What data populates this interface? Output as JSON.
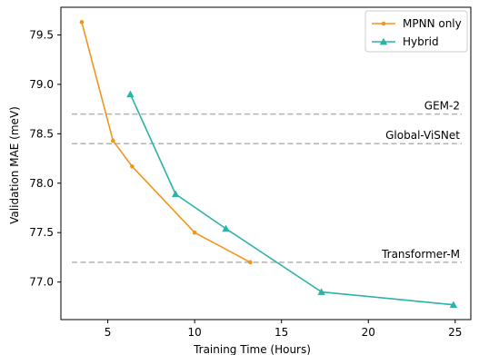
{
  "chart_data": {
    "type": "line",
    "xlabel": "Training Time (Hours)",
    "ylabel": "Validation MAE (meV)",
    "xlim": [
      2.3,
      25.9
    ],
    "ylim": [
      76.62,
      79.78
    ],
    "xticks": [
      5,
      10,
      15,
      20,
      25
    ],
    "xtick_labels": [
      "5",
      "10",
      "15",
      "20",
      "25"
    ],
    "yticks": [
      77.0,
      77.5,
      78.0,
      78.5,
      79.0,
      79.5
    ],
    "ytick_labels": [
      "77.0",
      "77.5",
      "78.0",
      "78.5",
      "79.0",
      "79.5"
    ],
    "grid": false,
    "legend_position": "top-right",
    "series": [
      {
        "name": "MPNN only",
        "color": "#f2951b",
        "marker": "circle",
        "x": [
          3.5,
          5.3,
          6.4,
          10.0,
          13.2
        ],
        "y": [
          79.63,
          78.43,
          78.17,
          77.5,
          77.2
        ]
      },
      {
        "name": "Hybrid",
        "color": "#2ab3a6",
        "marker": "triangle",
        "x": [
          6.3,
          8.9,
          11.8,
          17.3,
          24.9
        ],
        "y": [
          78.9,
          77.89,
          77.54,
          76.9,
          76.77
        ]
      }
    ],
    "reference_lines": [
      {
        "label": "GEM-2",
        "y": 78.7,
        "color": "#b3b3b3"
      },
      {
        "label": "Global-ViSNet",
        "y": 78.4,
        "color": "#b3b3b3"
      },
      {
        "label": "Transformer-M",
        "y": 77.2,
        "color": "#b3b3b3"
      }
    ]
  }
}
